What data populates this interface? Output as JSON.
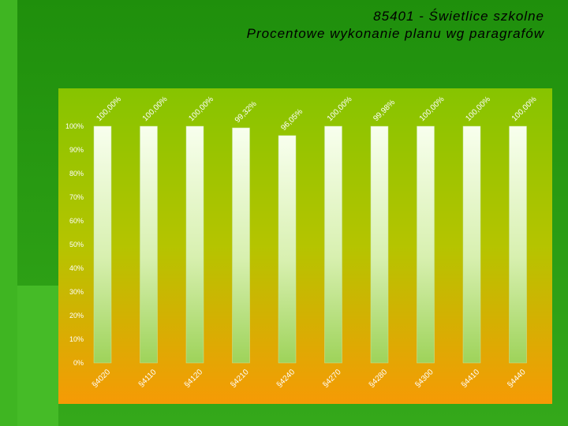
{
  "title_line1": "85401 - Świetlice szkolne",
  "title_line2": "Procentowe  wykonanie planu wg paragrafów",
  "chart_data": {
    "type": "bar",
    "categories": [
      "§4020",
      "§4110",
      "§4120",
      "§4210",
      "§4240",
      "§4270",
      "§4280",
      "§4300",
      "§4410",
      "§4440"
    ],
    "values": [
      100.0,
      100.0,
      100.0,
      99.32,
      96.05,
      100.0,
      99.98,
      100.0,
      100.0,
      100.0
    ],
    "value_labels": [
      "100,00%",
      "100,00%",
      "100,00%",
      "99,32%",
      "96,05%",
      "100,00%",
      "99,98%",
      "100,00%",
      "100,00%",
      "100,00%"
    ],
    "y_ticks": [
      "0%",
      "10%",
      "20%",
      "30%",
      "40%",
      "50%",
      "60%",
      "70%",
      "80%",
      "90%",
      "100%"
    ],
    "ylim": [
      0,
      100
    ],
    "colors": {
      "bar": "#f5fde8",
      "bg_top": "#8ec600",
      "bg_bottom": "#f59a06"
    }
  }
}
